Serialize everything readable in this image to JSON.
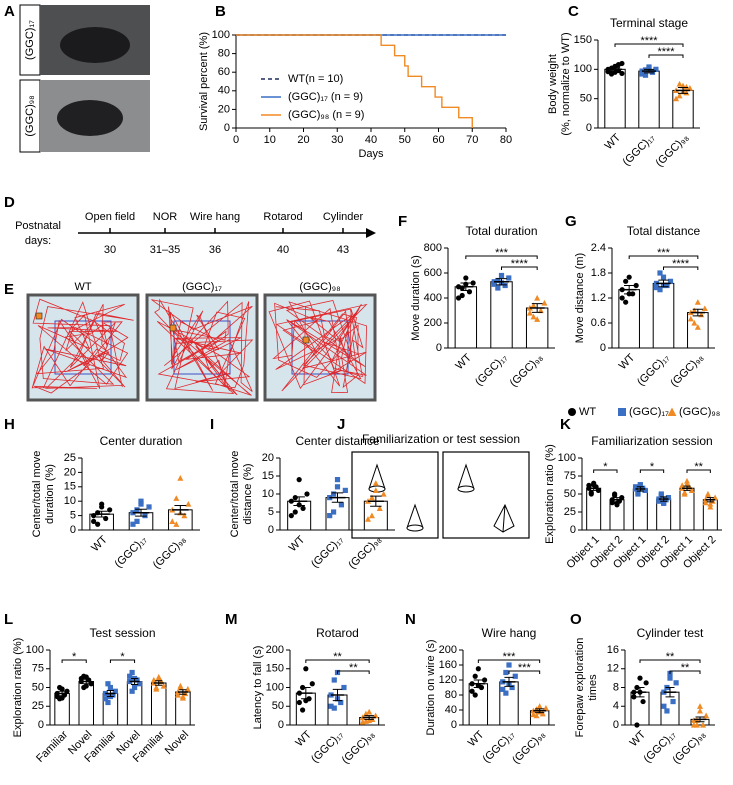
{
  "photos": {
    "label": "A",
    "groups": [
      "(GGC)₁₇",
      "(GGC)₉₈"
    ]
  },
  "timeline": {
    "label": "D",
    "axis_label": [
      "Postnatal",
      "days:"
    ],
    "events": [
      "Open field",
      "NOR",
      "Wire hang",
      "Rotarod",
      "Cylinder"
    ],
    "days": [
      "30",
      "31–35",
      "36",
      "40",
      "43"
    ]
  },
  "open_field": {
    "label": "E",
    "groups": [
      "WT",
      "(GGC)₁₇",
      "(GGC)₉₈"
    ]
  },
  "object_task": {
    "label": "J",
    "title": "Familiarization or test session"
  },
  "chart_data": [
    {
      "type": "line",
      "label": "B",
      "xlabel": "Days",
      "ylabel": [
        "Survival percent (%)"
      ],
      "xlim": [
        0,
        80
      ],
      "xticks": [
        0,
        10,
        20,
        30,
        40,
        50,
        60,
        70,
        80
      ],
      "ylim": [
        0,
        100
      ],
      "yticks": [
        0,
        20,
        40,
        60,
        80,
        100
      ],
      "step": true,
      "series": [
        {
          "name": "WT(n = 10)",
          "color": "#1f2a5c",
          "line_style": "dashed",
          "x": [
            0,
            80
          ],
          "values": [
            100,
            100
          ]
        },
        {
          "name": "(GGC)₁₇ (n = 9)",
          "color": "#3a6fc4",
          "line_style": "solid",
          "x": [
            0,
            80
          ],
          "values": [
            100,
            100
          ]
        },
        {
          "name": "(GGC)₉₈ (n = 9)",
          "color": "#f08a24",
          "line_style": "solid",
          "x": [
            0,
            43,
            47,
            50,
            51,
            55,
            59,
            61,
            66,
            70
          ],
          "values": [
            100,
            88.9,
            77.8,
            66.7,
            55.6,
            44.4,
            33.3,
            22.2,
            11.1,
            0
          ]
        }
      ]
    },
    {
      "type": "bar",
      "label": "C",
      "title": "Terminal stage",
      "ylabel": [
        "Body weight",
        "(%, normalize to WT)"
      ],
      "categories": [
        "WT",
        "(GGC)₁₇",
        "(GGC)₉₈"
      ],
      "colors": [
        "#000000",
        "#3a6fc4",
        "#f08a24"
      ],
      "markers": [
        "circle",
        "square",
        "triangle"
      ],
      "values": [
        100,
        97,
        64
      ],
      "errors": [
        3,
        3,
        5
      ],
      "points": [
        [
          100,
          92,
          105,
          98,
          110,
          96,
          102,
          95,
          108,
          93
        ],
        [
          97,
          90,
          104,
          95,
          100,
          92,
          99,
          101,
          96
        ],
        [
          64,
          55,
          72,
          60,
          68,
          50,
          75,
          62,
          70
        ]
      ],
      "ylim": [
        0,
        150
      ],
      "yticks": [
        0,
        50,
        100,
        150
      ],
      "significance": [
        "****",
        "****"
      ]
    },
    {
      "type": "bar",
      "label": "F",
      "title": "Total duration",
      "ylabel": [
        "Move duration (s)"
      ],
      "categories": [
        "WT",
        "(GGC)₁₇",
        "(GGC)₉₈"
      ],
      "colors": [
        "#000000",
        "#3a6fc4",
        "#f08a24"
      ],
      "markers": [
        "circle",
        "square",
        "triangle"
      ],
      "values": [
        490,
        530,
        320
      ],
      "errors": [
        30,
        25,
        35
      ],
      "points": [
        [
          490,
          420,
          560,
          450,
          520,
          400,
          480,
          510
        ],
        [
          530,
          480,
          580,
          500,
          560,
          510,
          540,
          520
        ],
        [
          320,
          250,
          400,
          300,
          360,
          280,
          340,
          230
        ]
      ],
      "ylim": [
        0,
        800
      ],
      "yticks": [
        0,
        200,
        400,
        600,
        800
      ],
      "significance": [
        "***",
        "****"
      ]
    },
    {
      "type": "bar",
      "label": "G",
      "title": "Total distance",
      "ylabel": [
        "Move distance (m)"
      ],
      "categories": [
        "WT",
        "(GGC)₁₇",
        "(GGC)₉₈"
      ],
      "colors": [
        "#000000",
        "#3a6fc4",
        "#f08a24"
      ],
      "markers": [
        "circle",
        "square",
        "triangle"
      ],
      "values": [
        1.4,
        1.55,
        0.85
      ],
      "errors": [
        0.1,
        0.08,
        0.08
      ],
      "points": [
        [
          1.4,
          1.1,
          1.7,
          1.3,
          1.5,
          1.2,
          1.6,
          1.3
        ],
        [
          1.55,
          1.4,
          1.7,
          1.5,
          1.6,
          1.45,
          1.8,
          1.5
        ],
        [
          0.85,
          0.6,
          1.1,
          0.8,
          0.95,
          0.7,
          0.9,
          0.5
        ]
      ],
      "ylim": [
        0,
        2.4
      ],
      "yticks": [
        0,
        0.6,
        1.2,
        1.8,
        2.4
      ],
      "significance": [
        "***",
        "****"
      ]
    },
    {
      "type": "bar",
      "label": "H",
      "title": "Center duration",
      "ylabel": [
        "Center/total move",
        "duration (%)"
      ],
      "categories": [
        "WT",
        "(GGC)₁₇",
        "(GGC)₉₈"
      ],
      "colors": [
        "#000000",
        "#3a6fc4",
        "#f08a24"
      ],
      "markers": [
        "circle",
        "square",
        "triangle"
      ],
      "values": [
        5.5,
        6,
        7
      ],
      "errors": [
        1,
        1.2,
        1.5
      ],
      "points": [
        [
          5,
          2,
          9,
          4,
          7,
          3,
          6,
          8
        ],
        [
          6,
          3,
          10,
          5,
          8,
          2,
          7,
          9
        ],
        [
          7,
          2,
          18,
          5,
          9,
          3,
          11,
          6
        ]
      ],
      "ylim": [
        0,
        25
      ],
      "yticks": [
        0,
        5,
        10,
        15,
        20,
        25
      ]
    },
    {
      "type": "bar",
      "label": "I",
      "title": "Center distance",
      "ylabel": [
        "Center/total move",
        "distance (%)"
      ],
      "categories": [
        "WT",
        "(GGC)₁₇",
        "(GGC)₉₈"
      ],
      "colors": [
        "#000000",
        "#3a6fc4",
        "#f08a24"
      ],
      "markers": [
        "circle",
        "square",
        "triangle"
      ],
      "values": [
        8,
        9,
        8
      ],
      "errors": [
        1.2,
        1.3,
        1.4
      ],
      "points": [
        [
          8,
          5,
          14,
          6,
          10,
          4,
          9,
          7
        ],
        [
          9,
          5,
          14,
          7,
          11,
          4,
          10,
          12
        ],
        [
          8,
          4,
          13,
          6,
          10,
          3,
          9,
          11
        ]
      ],
      "ylim": [
        0,
        20
      ],
      "yticks": [
        0,
        5,
        10,
        15,
        20
      ]
    },
    {
      "type": "bar",
      "label": "K",
      "title": "Familiarization session",
      "ylabel": [
        "Exploration ratio (%)"
      ],
      "categories": [
        "Object 1",
        "Object 2",
        "Object 1",
        "Object 2",
        "Object 1",
        "Object 2"
      ],
      "colors": [
        "#000000",
        "#000000",
        "#3a6fc4",
        "#3a6fc4",
        "#f08a24",
        "#f08a24"
      ],
      "markers": [
        "circle",
        "circle",
        "square",
        "square",
        "triangle",
        "triangle"
      ],
      "values": [
        58,
        42,
        57,
        43,
        58,
        42
      ],
      "errors": [
        3,
        3,
        3,
        3,
        3,
        3
      ],
      "points": [
        [
          58,
          52,
          65,
          60,
          55,
          62,
          50,
          63
        ],
        [
          42,
          48,
          35,
          40,
          45,
          38,
          50,
          37
        ],
        [
          57,
          52,
          63,
          58,
          55,
          60,
          50,
          62
        ],
        [
          43,
          48,
          37,
          42,
          45,
          40,
          50,
          38
        ],
        [
          58,
          52,
          68,
          60,
          55,
          62,
          50,
          64
        ],
        [
          42,
          48,
          32,
          40,
          45,
          38,
          50,
          36
        ]
      ],
      "ylim": [
        0,
        100
      ],
      "yticks": [
        0,
        25,
        50,
        75,
        100
      ],
      "significance": [
        "*",
        "*",
        "**"
      ],
      "legend": [
        {
          "name": "WT",
          "color": "#000000",
          "marker": "circle"
        },
        {
          "name": "(GGC)₁₇",
          "color": "#3a6fc4",
          "marker": "square"
        },
        {
          "name": "(GGC)₉₈",
          "color": "#f08a24",
          "marker": "triangle"
        }
      ]
    },
    {
      "type": "bar",
      "label": "L",
      "title": "Test session",
      "ylabel": [
        "Exploration ratio (%)"
      ],
      "categories": [
        "Familiar",
        "Novel",
        "Familiar",
        "Novel",
        "Familiar",
        "Novel"
      ],
      "colors": [
        "#000000",
        "#000000",
        "#3a6fc4",
        "#3a6fc4",
        "#f08a24",
        "#f08a24"
      ],
      "markers": [
        "circle",
        "circle",
        "square",
        "square",
        "triangle",
        "triangle"
      ],
      "values": [
        42,
        58,
        42,
        58,
        56,
        44
      ],
      "errors": [
        3,
        3,
        4,
        4,
        3,
        3
      ],
      "points": [
        [
          42,
          35,
          48,
          40,
          45,
          38,
          50,
          36
        ],
        [
          58,
          65,
          52,
          60,
          55,
          62,
          50,
          64
        ],
        [
          42,
          30,
          50,
          40,
          45,
          35,
          55,
          38
        ],
        [
          58,
          70,
          50,
          60,
          55,
          65,
          45,
          62
        ],
        [
          56,
          50,
          62,
          58,
          52,
          60,
          48,
          64
        ],
        [
          44,
          50,
          38,
          42,
          48,
          40,
          52,
          36
        ]
      ],
      "ylim": [
        0,
        100
      ],
      "yticks": [
        0,
        25,
        50,
        75,
        100
      ],
      "significance": [
        "*",
        "*"
      ]
    },
    {
      "type": "bar",
      "label": "M",
      "title": "Rotarod",
      "ylabel": [
        "Latency to fall (s)"
      ],
      "categories": [
        "WT",
        "(GGC)₁₇",
        "(GGC)₉₈"
      ],
      "colors": [
        "#000000",
        "#3a6fc4",
        "#f08a24"
      ],
      "markers": [
        "circle",
        "square",
        "triangle"
      ],
      "values": [
        85,
        80,
        20
      ],
      "errors": [
        15,
        15,
        5
      ],
      "points": [
        [
          85,
          40,
          150,
          70,
          110,
          60,
          100,
          65
        ],
        [
          80,
          45,
          140,
          60,
          100,
          50,
          120,
          70
        ],
        [
          20,
          10,
          35,
          15,
          25,
          8,
          30,
          12
        ]
      ],
      "ylim": [
        0,
        200
      ],
      "yticks": [
        0,
        50,
        100,
        150,
        200
      ],
      "significance": [
        "**",
        "**"
      ]
    },
    {
      "type": "bar",
      "label": "N",
      "title": "Wire hang",
      "ylabel": [
        "Duration on wire (s)"
      ],
      "categories": [
        "WT",
        "(GGC)₁₇",
        "(GGC)₉₈"
      ],
      "colors": [
        "#000000",
        "#3a6fc4",
        "#f08a24"
      ],
      "markers": [
        "circle",
        "square",
        "triangle"
      ],
      "values": [
        110,
        115,
        38
      ],
      "errors": [
        10,
        12,
        5
      ],
      "points": [
        [
          110,
          80,
          150,
          100,
          120,
          90,
          130,
          105
        ],
        [
          115,
          85,
          160,
          100,
          130,
          95,
          140,
          110
        ],
        [
          38,
          25,
          50,
          30,
          45,
          28,
          42,
          35
        ]
      ],
      "ylim": [
        0,
        200
      ],
      "yticks": [
        0,
        40,
        80,
        120,
        160,
        200
      ],
      "significance": [
        "***",
        "***"
      ]
    },
    {
      "type": "bar",
      "label": "O",
      "title": "Cylinder test",
      "ylabel": [
        "Forepaw exploration",
        "times"
      ],
      "categories": [
        "WT",
        "(GGC)₁₇",
        "(GGC)₉₈"
      ],
      "colors": [
        "#000000",
        "#3a6fc4",
        "#f08a24"
      ],
      "markers": [
        "circle",
        "square",
        "triangle"
      ],
      "values": [
        7,
        7,
        1.2
      ],
      "errors": [
        1,
        1,
        0.5
      ],
      "points": [
        [
          7,
          0,
          10,
          5,
          9,
          6,
          8,
          7
        ],
        [
          7,
          3,
          11,
          5,
          9,
          4,
          8,
          10
        ],
        [
          1,
          0,
          4,
          0,
          2,
          0,
          1,
          3
        ]
      ],
      "ylim": [
        0,
        16
      ],
      "yticks": [
        0,
        4,
        8,
        12,
        16
      ],
      "significance": [
        "**",
        "**"
      ]
    }
  ]
}
